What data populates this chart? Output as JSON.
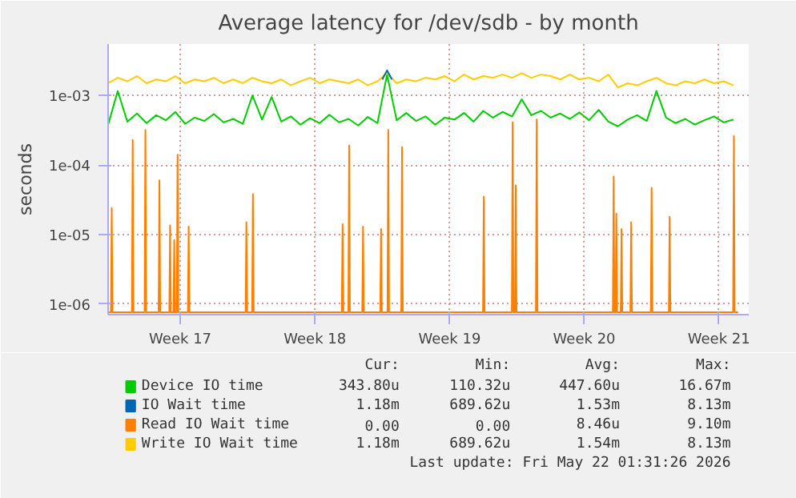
{
  "chart_data": {
    "type": "line",
    "title": "Average latency for /dev/sdb - by month",
    "ylabel": "seconds",
    "log": "y",
    "grid": true,
    "legend": "bottom",
    "xlim": [
      "2026-04-19T18:00",
      "2026-05-23T01:12"
    ],
    "ylim": [
      7e-07,
      0.0055
    ],
    "xticks": [
      {
        "value": "2026-04-23T12:00",
        "label": "Week 17"
      },
      {
        "value": "2026-04-30T12:00",
        "label": "Week 18"
      },
      {
        "value": "2026-05-07T12:00",
        "label": "Week 19"
      },
      {
        "value": "2026-05-14T12:00",
        "label": "Week 20"
      },
      {
        "value": "2026-05-21T12:00",
        "label": "Week 21"
      }
    ],
    "yticks": [
      {
        "value": 1e-06,
        "label": "1e-06"
      },
      {
        "value": 1e-05,
        "label": "1e-05"
      },
      {
        "value": 0.0001,
        "label": "1e-04"
      },
      {
        "value": 0.001,
        "label": "1e-03"
      }
    ],
    "series": [
      {
        "name": "Device IO time",
        "color": "#00cc00",
        "x": [
          "2026-04-19T18:00",
          "2026-04-20T06:00",
          "2026-04-20T18:00",
          "2026-04-21T06:00",
          "2026-04-21T18:00",
          "2026-04-22T06:00",
          "2026-04-22T18:00",
          "2026-04-23T06:00",
          "2026-04-23T18:00",
          "2026-04-24T06:00",
          "2026-04-24T18:00",
          "2026-04-25T06:00",
          "2026-04-25T18:00",
          "2026-04-26T06:00",
          "2026-04-26T18:00",
          "2026-04-27T06:00",
          "2026-04-27T18:00",
          "2026-04-28T06:00",
          "2026-04-28T18:00",
          "2026-04-29T06:00",
          "2026-04-29T18:00",
          "2026-04-30T06:00",
          "2026-04-30T18:00",
          "2026-05-01T06:00",
          "2026-05-01T18:00",
          "2026-05-02T06:00",
          "2026-05-02T18:00",
          "2026-05-03T06:00",
          "2026-05-03T18:00",
          "2026-05-04T06:00",
          "2026-05-04T18:00",
          "2026-05-05T06:00",
          "2026-05-05T18:00",
          "2026-05-06T06:00",
          "2026-05-06T18:00",
          "2026-05-07T06:00",
          "2026-05-07T18:00",
          "2026-05-08T06:00",
          "2026-05-08T18:00",
          "2026-05-09T06:00",
          "2026-05-09T18:00",
          "2026-05-10T06:00",
          "2026-05-10T18:00",
          "2026-05-11T06:00",
          "2026-05-11T18:00",
          "2026-05-12T06:00",
          "2026-05-12T18:00",
          "2026-05-13T06:00",
          "2026-05-13T18:00",
          "2026-05-14T06:00",
          "2026-05-14T18:00",
          "2026-05-15T06:00",
          "2026-05-15T18:00",
          "2026-05-16T06:00",
          "2026-05-16T18:00",
          "2026-05-17T06:00",
          "2026-05-17T18:00",
          "2026-05-18T06:00",
          "2026-05-18T18:00",
          "2026-05-19T06:00",
          "2026-05-19T18:00",
          "2026-05-20T06:00",
          "2026-05-20T18:00",
          "2026-05-21T06:00",
          "2026-05-21T18:00",
          "2026-05-22T06:00"
        ],
        "values": [
          0.00038,
          0.00116,
          0.00042,
          0.00055,
          0.0004,
          0.00052,
          0.00044,
          0.00058,
          0.00039,
          0.00048,
          0.00043,
          0.00054,
          0.00041,
          0.00046,
          0.00039,
          0.001,
          0.00045,
          0.00095,
          0.00042,
          0.0005,
          0.00038,
          0.00047,
          0.0004,
          0.00053,
          0.00041,
          0.00046,
          0.00037,
          0.00049,
          0.0004,
          0.002,
          0.00044,
          0.00056,
          0.00043,
          0.0005,
          0.00038,
          0.00048,
          0.00045,
          0.00056,
          0.00042,
          0.0006,
          0.00048,
          0.00058,
          0.0005,
          0.00088,
          0.00052,
          0.0006,
          0.00048,
          0.00055,
          0.00046,
          0.00057,
          0.00044,
          0.00062,
          0.00042,
          0.00036,
          0.00045,
          0.00052,
          0.00043,
          0.00116,
          0.00048,
          0.0004,
          0.00046,
          0.00038,
          0.00044,
          0.0005,
          0.00041,
          0.00045
        ]
      },
      {
        "name": "IO Wait time",
        "color": "#0066b3",
        "x": [
          "2026-05-04T00:00",
          "2026-05-04T06:00",
          "2026-05-04T12:00"
        ],
        "values": [
          0.0017,
          0.0023,
          0.0017
        ]
      },
      {
        "name": "Read IO Wait time",
        "color": "#ff8000",
        "x": [
          "2026-04-19T18:00",
          "2026-04-19T21:30",
          "2026-04-19T22:30",
          "2026-04-19T23:30",
          "2026-04-20T23:40",
          "2026-04-21T00:40",
          "2026-04-21T01:40",
          "2026-04-21T15:30",
          "2026-04-21T16:30",
          "2026-04-21T17:30",
          "2026-04-22T09:00",
          "2026-04-22T10:00",
          "2026-04-22T11:00",
          "2026-04-22T22:20",
          "2026-04-22T23:20",
          "2026-04-23T00:20",
          "2026-04-23T03:30",
          "2026-04-23T04:30",
          "2026-04-23T05:30",
          "2026-04-23T07:40",
          "2026-04-23T08:40",
          "2026-04-23T09:40",
          "2026-04-23T21:30",
          "2026-04-23T22:30",
          "2026-04-23T23:30",
          "2026-04-26T21:30",
          "2026-04-26T22:30",
          "2026-04-26T23:30",
          "2026-04-27T05:40",
          "2026-04-27T06:40",
          "2026-04-27T07:40",
          "2026-05-01T21:30",
          "2026-05-01T22:30",
          "2026-05-01T23:30",
          "2026-05-02T05:40",
          "2026-05-02T06:40",
          "2026-05-02T07:40",
          "2026-05-02T23:00",
          "2026-05-03T00:00",
          "2026-05-03T01:00",
          "2026-05-03T21:30",
          "2026-05-03T22:30",
          "2026-05-03T23:30",
          "2026-05-04T06:30",
          "2026-05-04T07:30",
          "2026-05-04T08:30",
          "2026-05-04T23:40",
          "2026-05-05T00:40",
          "2026-05-05T01:40",
          "2026-05-09T05:40",
          "2026-05-09T06:40",
          "2026-05-09T07:40",
          "2026-05-10T17:40",
          "2026-05-10T18:40",
          "2026-05-10T19:40",
          "2026-05-10T21:30",
          "2026-05-10T22:30",
          "2026-05-10T23:30",
          "2026-05-11T23:40",
          "2026-05-12T00:40",
          "2026-05-12T01:40",
          "2026-05-15T23:40",
          "2026-05-16T00:40",
          "2026-05-16T01:40",
          "2026-05-16T03:00",
          "2026-05-16T04:00",
          "2026-05-16T05:00",
          "2026-05-16T09:30",
          "2026-05-16T10:30",
          "2026-05-16T11:30",
          "2026-05-16T21:30",
          "2026-05-16T22:30",
          "2026-05-16T23:30",
          "2026-05-17T23:00",
          "2026-05-18T00:00",
          "2026-05-18T01:00",
          "2026-05-18T21:30",
          "2026-05-18T22:30",
          "2026-05-18T23:30",
          "2026-05-22T05:40",
          "2026-05-22T06:40",
          "2026-05-22T07:40",
          "2026-05-22T12:00"
        ],
        "values": [
          7.6e-07,
          7.6e-07,
          2.4e-05,
          7.6e-07,
          7.6e-07,
          0.00023,
          7.6e-07,
          7.6e-07,
          0.00032,
          7.6e-07,
          7.6e-07,
          6e-05,
          7.6e-07,
          7.6e-07,
          1.35e-05,
          7.6e-07,
          7.6e-07,
          8.3e-06,
          7.6e-07,
          7.6e-07,
          0.00014,
          7.6e-07,
          7.6e-07,
          1.3e-05,
          7.6e-07,
          7.6e-07,
          1.5e-05,
          7.6e-07,
          7.6e-07,
          3.8e-05,
          7.6e-07,
          7.6e-07,
          1.4e-05,
          7.6e-07,
          7.6e-07,
          0.00019,
          7.6e-07,
          7.6e-07,
          1.3e-05,
          7.6e-07,
          7.6e-07,
          1.2e-05,
          7.6e-07,
          7.6e-07,
          0.00032,
          7.6e-07,
          7.6e-07,
          0.00018,
          7.6e-07,
          7.6e-07,
          3.5e-05,
          7.6e-07,
          7.6e-07,
          0.00041,
          7.6e-07,
          7.6e-07,
          5.1e-05,
          7.6e-07,
          7.6e-07,
          0.00045,
          7.6e-07,
          7.6e-07,
          6.8e-05,
          7.6e-07,
          7.6e-07,
          2e-05,
          7.6e-07,
          7.6e-07,
          1.2e-05,
          7.6e-07,
          7.6e-07,
          1.5e-05,
          7.6e-07,
          7.6e-07,
          4.7e-05,
          7.6e-07,
          7.6e-07,
          1.8e-05,
          7.6e-07,
          7.6e-07,
          0.00026,
          7.6e-07,
          7.6e-07
        ]
      },
      {
        "name": "Write IO Wait time",
        "color": "#ffcc00",
        "x": [
          "2026-04-19T18:00",
          "2026-04-20T06:00",
          "2026-04-20T18:00",
          "2026-04-21T06:00",
          "2026-04-21T18:00",
          "2026-04-22T06:00",
          "2026-04-22T18:00",
          "2026-04-23T06:00",
          "2026-04-23T18:00",
          "2026-04-24T06:00",
          "2026-04-24T18:00",
          "2026-04-25T06:00",
          "2026-04-25T18:00",
          "2026-04-26T06:00",
          "2026-04-26T18:00",
          "2026-04-27T06:00",
          "2026-04-27T18:00",
          "2026-04-28T06:00",
          "2026-04-28T18:00",
          "2026-04-29T06:00",
          "2026-04-29T18:00",
          "2026-04-30T06:00",
          "2026-04-30T18:00",
          "2026-05-01T06:00",
          "2026-05-01T18:00",
          "2026-05-02T06:00",
          "2026-05-02T18:00",
          "2026-05-03T06:00",
          "2026-05-03T18:00",
          "2026-05-04T06:00",
          "2026-05-04T18:00",
          "2026-05-05T06:00",
          "2026-05-05T18:00",
          "2026-05-06T06:00",
          "2026-05-06T18:00",
          "2026-05-07T06:00",
          "2026-05-07T18:00",
          "2026-05-08T06:00",
          "2026-05-08T18:00",
          "2026-05-09T06:00",
          "2026-05-09T18:00",
          "2026-05-10T06:00",
          "2026-05-10T18:00",
          "2026-05-11T06:00",
          "2026-05-11T18:00",
          "2026-05-12T06:00",
          "2026-05-12T18:00",
          "2026-05-13T06:00",
          "2026-05-13T18:00",
          "2026-05-14T06:00",
          "2026-05-14T18:00",
          "2026-05-15T06:00",
          "2026-05-15T18:00",
          "2026-05-16T06:00",
          "2026-05-16T18:00",
          "2026-05-17T06:00",
          "2026-05-17T18:00",
          "2026-05-18T06:00",
          "2026-05-18T18:00",
          "2026-05-19T06:00",
          "2026-05-19T18:00",
          "2026-05-20T06:00",
          "2026-05-20T18:00",
          "2026-05-21T06:00",
          "2026-05-21T18:00",
          "2026-05-22T06:00"
        ],
        "values": [
          0.0015,
          0.0018,
          0.0016,
          0.0019,
          0.0015,
          0.0017,
          0.0016,
          0.0019,
          0.0015,
          0.0017,
          0.0016,
          0.0018,
          0.0015,
          0.0017,
          0.0015,
          0.0018,
          0.0016,
          0.0015,
          0.0017,
          0.0014,
          0.0016,
          0.0018,
          0.0015,
          0.0017,
          0.0016,
          0.0015,
          0.0017,
          0.0014,
          0.0016,
          0.0021,
          0.0015,
          0.0017,
          0.0016,
          0.0018,
          0.0017,
          0.0019,
          0.0016,
          0.002,
          0.0017,
          0.0019,
          0.0018,
          0.002,
          0.0018,
          0.0021,
          0.0018,
          0.002,
          0.0019,
          0.0017,
          0.002,
          0.0017,
          0.0018,
          0.0016,
          0.002,
          0.0013,
          0.0015,
          0.0014,
          0.0016,
          0.0018,
          0.0015,
          0.0014,
          0.0016,
          0.0015,
          0.0017,
          0.0015,
          0.0016,
          0.0014
        ]
      }
    ],
    "annotations": [
      "Cur:",
      "Min:",
      "Avg:",
      "Max:",
      "343.80u",
      "110.32u",
      "447.60u",
      "16.67m",
      "1.18m",
      "689.62u",
      "1.53m",
      "8.13m",
      "0.00",
      "0.00",
      "8.46u",
      "9.10m",
      "1.18m",
      "689.62u",
      "1.54m",
      "8.13m",
      "Last update: Fri May 22 01:31:26 2026"
    ]
  }
}
